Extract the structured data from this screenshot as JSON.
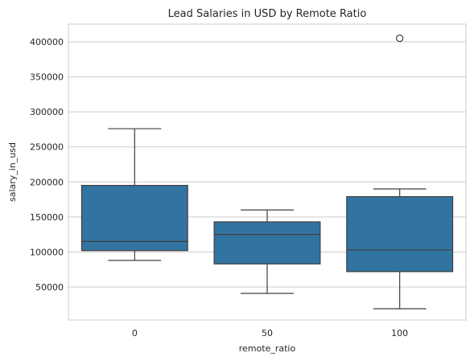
{
  "chart_data": {
    "type": "box",
    "title": "Lead Salaries in USD by Remote Ratio",
    "xlabel": "remote_ratio",
    "ylabel": "salary_in_usd",
    "categories": [
      "0",
      "50",
      "100"
    ],
    "ylim": [
      0,
      425000
    ],
    "yticks": [
      50000,
      100000,
      150000,
      200000,
      250000,
      300000,
      350000,
      400000
    ],
    "grid": "horizontal",
    "box_color": "#3274a1",
    "line_color": "#3f3f3f",
    "boxes": [
      {
        "category": "0",
        "whisker_low": 88000,
        "q1": 102000,
        "median": 115000,
        "q3": 195000,
        "whisker_high": 276000,
        "outliers": []
      },
      {
        "category": "50",
        "whisker_low": 41000,
        "q1": 83000,
        "median": 125000,
        "q3": 143000,
        "whisker_high": 160000,
        "outliers": []
      },
      {
        "category": "100",
        "whisker_low": 19000,
        "q1": 72000,
        "median": 103000,
        "q3": 179000,
        "whisker_high": 190000,
        "outliers": [
          405000
        ]
      }
    ]
  }
}
